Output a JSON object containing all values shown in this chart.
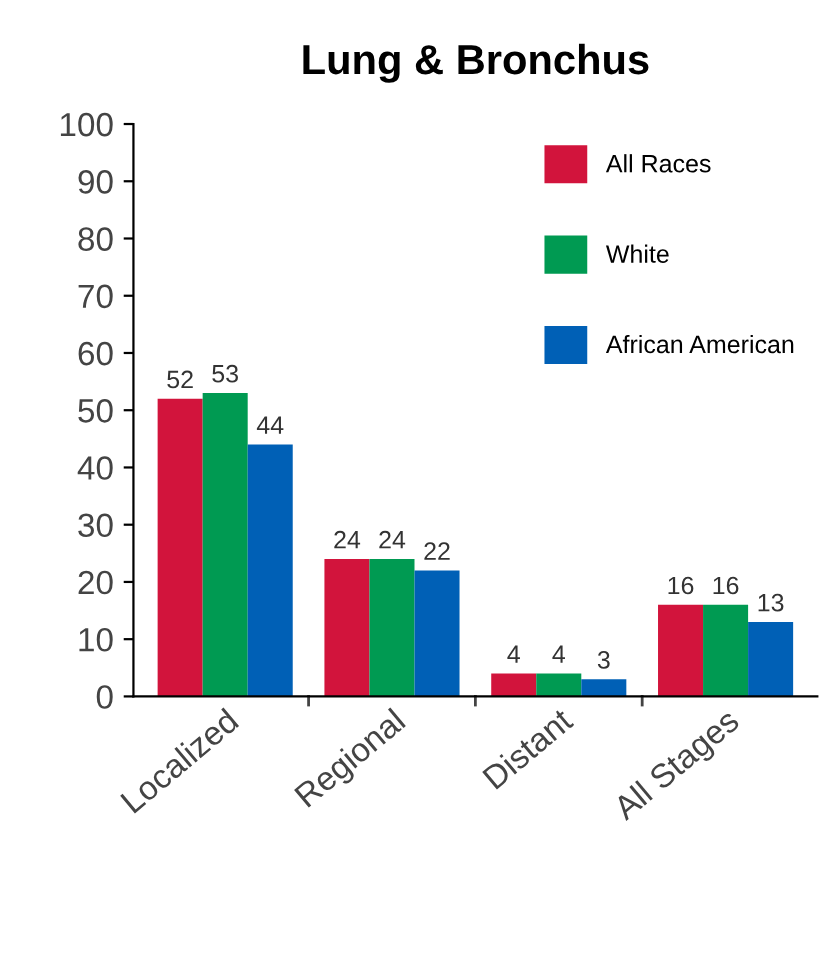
{
  "chart_data": {
    "type": "bar",
    "title": "Lung & Bronchus",
    "categories": [
      "Localized",
      "Regional",
      "Distant",
      "All Stages"
    ],
    "series": [
      {
        "name": "All Races",
        "color": "#d2143c",
        "values": [
          52,
          24,
          4,
          16
        ]
      },
      {
        "name": "White",
        "color": "#009a52",
        "values": [
          53,
          24,
          4,
          16
        ]
      },
      {
        "name": "African American",
        "color": "#0060b6",
        "values": [
          44,
          22,
          3,
          13
        ]
      }
    ],
    "ylim": [
      0,
      100
    ],
    "yticks": [
      0,
      10,
      20,
      30,
      40,
      50,
      60,
      70,
      80,
      90,
      100
    ],
    "data_labels": true,
    "legend": "top right",
    "grid": false
  }
}
